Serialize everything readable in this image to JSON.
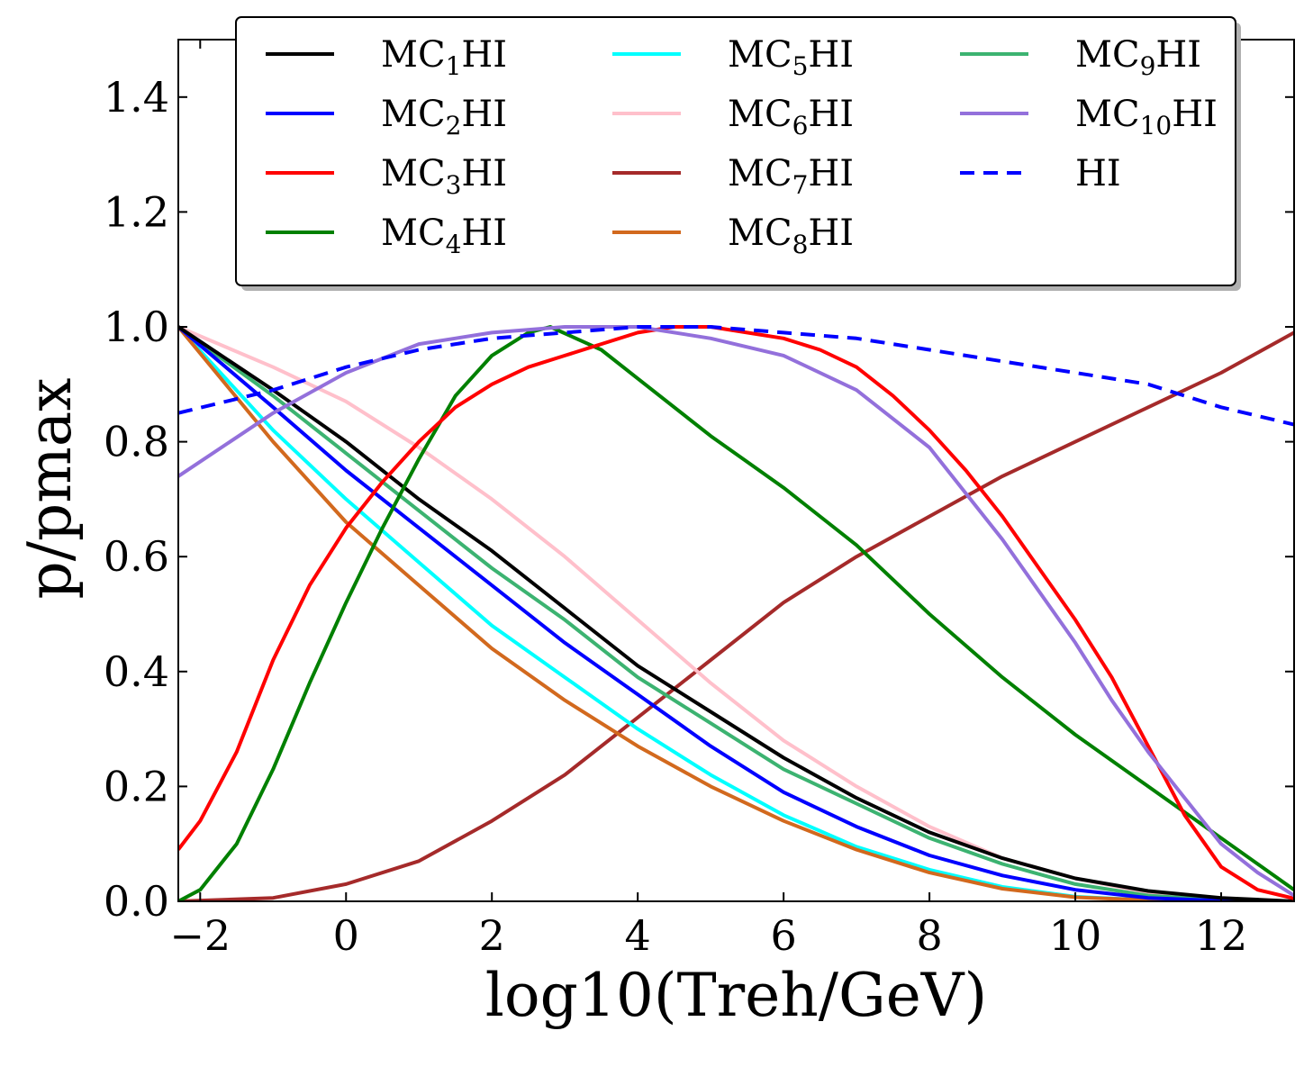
{
  "chart_data": {
    "type": "line",
    "title": "",
    "xlabel": "log10(Treh/GeV)",
    "ylabel": "p/pmax",
    "xlim": [
      -2.3,
      13
    ],
    "ylim": [
      0,
      1.5
    ],
    "xticks": [
      -2,
      0,
      2,
      4,
      6,
      8,
      10,
      12
    ],
    "xtick_labels": [
      "−2",
      "0",
      "2",
      "4",
      "6",
      "8",
      "10",
      "12"
    ],
    "yticks": [
      0,
      0.2,
      0.4,
      0.6,
      0.8,
      1.0,
      1.2,
      1.4
    ],
    "ytick_labels": [
      "0.0",
      "0.2",
      "0.4",
      "0.6",
      "0.8",
      "1.0",
      "1.2",
      "1.4"
    ],
    "grid": false,
    "legend_position": "top",
    "legend_columns": 3,
    "series": [
      {
        "name": "MC1HI",
        "label_base": "MC",
        "label_sub": "1",
        "label_suffix": "HI",
        "color": "#000000",
        "dash": "solid",
        "points": [
          [
            -2.3,
            1.0
          ],
          [
            -1,
            0.89
          ],
          [
            0,
            0.8
          ],
          [
            1,
            0.7
          ],
          [
            2,
            0.61
          ],
          [
            3,
            0.51
          ],
          [
            4,
            0.41
          ],
          [
            5,
            0.33
          ],
          [
            6,
            0.25
          ],
          [
            7,
            0.18
          ],
          [
            8,
            0.12
          ],
          [
            9,
            0.075
          ],
          [
            10,
            0.04
          ],
          [
            11,
            0.018
          ],
          [
            12,
            0.006
          ],
          [
            13,
            0.0
          ]
        ]
      },
      {
        "name": "MC2HI",
        "label_base": "MC",
        "label_sub": "2",
        "label_suffix": "HI",
        "color": "#0000ff",
        "dash": "solid",
        "points": [
          [
            -2.3,
            1.0
          ],
          [
            -1,
            0.86
          ],
          [
            0,
            0.75
          ],
          [
            1,
            0.65
          ],
          [
            2,
            0.55
          ],
          [
            3,
            0.45
          ],
          [
            4,
            0.36
          ],
          [
            5,
            0.27
          ],
          [
            6,
            0.19
          ],
          [
            7,
            0.13
          ],
          [
            8,
            0.08
          ],
          [
            9,
            0.045
          ],
          [
            10,
            0.02
          ],
          [
            11,
            0.006
          ],
          [
            12,
            0.001
          ],
          [
            13,
            0.0
          ]
        ]
      },
      {
        "name": "MC3HI",
        "label_base": "MC",
        "label_sub": "3",
        "label_suffix": "HI",
        "color": "#ff0000",
        "dash": "solid",
        "points": [
          [
            -2.3,
            0.09
          ],
          [
            -2,
            0.14
          ],
          [
            -1.5,
            0.26
          ],
          [
            -1,
            0.42
          ],
          [
            -0.5,
            0.55
          ],
          [
            0,
            0.65
          ],
          [
            0.5,
            0.73
          ],
          [
            1,
            0.8
          ],
          [
            1.5,
            0.86
          ],
          [
            2,
            0.9
          ],
          [
            2.5,
            0.93
          ],
          [
            3,
            0.95
          ],
          [
            3.5,
            0.97
          ],
          [
            4,
            0.99
          ],
          [
            4.5,
            1.0
          ],
          [
            5,
            1.0
          ],
          [
            5.5,
            0.99
          ],
          [
            6,
            0.98
          ],
          [
            6.5,
            0.96
          ],
          [
            7,
            0.93
          ],
          [
            7.5,
            0.88
          ],
          [
            8,
            0.82
          ],
          [
            8.5,
            0.75
          ],
          [
            9,
            0.67
          ],
          [
            9.5,
            0.58
          ],
          [
            10,
            0.49
          ],
          [
            10.5,
            0.39
          ],
          [
            11,
            0.27
          ],
          [
            11.5,
            0.15
          ],
          [
            12,
            0.06
          ],
          [
            12.5,
            0.02
          ],
          [
            13,
            0.005
          ]
        ]
      },
      {
        "name": "MC4HI",
        "label_base": "MC",
        "label_sub": "4",
        "label_suffix": "HI",
        "color": "#008000",
        "dash": "solid",
        "points": [
          [
            -2.3,
            0.0
          ],
          [
            -2,
            0.02
          ],
          [
            -1.5,
            0.1
          ],
          [
            -1,
            0.23
          ],
          [
            -0.5,
            0.38
          ],
          [
            0,
            0.52
          ],
          [
            0.5,
            0.65
          ],
          [
            1,
            0.77
          ],
          [
            1.5,
            0.88
          ],
          [
            2,
            0.95
          ],
          [
            2.5,
            0.99
          ],
          [
            2.8,
            1.0
          ],
          [
            3.5,
            0.96
          ],
          [
            4,
            0.91
          ],
          [
            5,
            0.81
          ],
          [
            6,
            0.72
          ],
          [
            7,
            0.62
          ],
          [
            8,
            0.5
          ],
          [
            9,
            0.39
          ],
          [
            10,
            0.29
          ],
          [
            11,
            0.2
          ],
          [
            12,
            0.11
          ],
          [
            13,
            0.02
          ]
        ]
      },
      {
        "name": "MC5HI",
        "label_base": "MC",
        "label_sub": "5",
        "label_suffix": "HI",
        "color": "#00ffff",
        "dash": "solid",
        "points": [
          [
            -2.3,
            1.0
          ],
          [
            -1,
            0.82
          ],
          [
            0,
            0.7
          ],
          [
            1,
            0.59
          ],
          [
            2,
            0.48
          ],
          [
            3,
            0.39
          ],
          [
            4,
            0.3
          ],
          [
            5,
            0.22
          ],
          [
            6,
            0.15
          ],
          [
            7,
            0.095
          ],
          [
            8,
            0.055
          ],
          [
            9,
            0.025
          ],
          [
            10,
            0.008
          ],
          [
            11,
            0.002
          ],
          [
            12,
            0.0
          ],
          [
            13,
            0.0
          ]
        ]
      },
      {
        "name": "MC6HI",
        "label_base": "MC",
        "label_sub": "6",
        "label_suffix": "HI",
        "color": "#ffc0cb",
        "dash": "solid",
        "points": [
          [
            -2.3,
            1.0
          ],
          [
            -1,
            0.93
          ],
          [
            0,
            0.87
          ],
          [
            1,
            0.79
          ],
          [
            2,
            0.7
          ],
          [
            3,
            0.6
          ],
          [
            4,
            0.49
          ],
          [
            5,
            0.38
          ],
          [
            6,
            0.28
          ],
          [
            7,
            0.2
          ],
          [
            8,
            0.13
          ],
          [
            9,
            0.075
          ],
          [
            10,
            0.04
          ],
          [
            11,
            0.015
          ],
          [
            12,
            0.003
          ],
          [
            13,
            0.0
          ]
        ]
      },
      {
        "name": "MC7HI",
        "label_base": "MC",
        "label_sub": "7",
        "label_suffix": "HI",
        "color": "#a52a2a",
        "dash": "solid",
        "points": [
          [
            -2.3,
            0.0
          ],
          [
            -1,
            0.006
          ],
          [
            0,
            0.03
          ],
          [
            1,
            0.07
          ],
          [
            2,
            0.14
          ],
          [
            3,
            0.22
          ],
          [
            4,
            0.32
          ],
          [
            5,
            0.42
          ],
          [
            6,
            0.52
          ],
          [
            7,
            0.6
          ],
          [
            8,
            0.67
          ],
          [
            9,
            0.74
          ],
          [
            10,
            0.8
          ],
          [
            11,
            0.86
          ],
          [
            12,
            0.92
          ],
          [
            13,
            0.99
          ]
        ]
      },
      {
        "name": "MC8HI",
        "label_base": "MC",
        "label_sub": "8",
        "label_suffix": "HI",
        "color": "#d2691e",
        "dash": "solid",
        "points": [
          [
            -2.3,
            1.0
          ],
          [
            -1,
            0.8
          ],
          [
            0,
            0.66
          ],
          [
            1,
            0.55
          ],
          [
            2,
            0.44
          ],
          [
            3,
            0.35
          ],
          [
            4,
            0.27
          ],
          [
            5,
            0.2
          ],
          [
            6,
            0.14
          ],
          [
            7,
            0.09
          ],
          [
            8,
            0.05
          ],
          [
            9,
            0.022
          ],
          [
            10,
            0.007
          ],
          [
            11,
            0.002
          ],
          [
            12,
            0.0
          ],
          [
            13,
            0.0
          ]
        ]
      },
      {
        "name": "MC9HI",
        "label_base": "MC",
        "label_sub": "9",
        "label_suffix": "HI",
        "color": "#3cb371",
        "dash": "solid",
        "points": [
          [
            -2.3,
            1.0
          ],
          [
            -1,
            0.88
          ],
          [
            0,
            0.78
          ],
          [
            1,
            0.68
          ],
          [
            2,
            0.58
          ],
          [
            3,
            0.49
          ],
          [
            4,
            0.39
          ],
          [
            5,
            0.31
          ],
          [
            6,
            0.23
          ],
          [
            7,
            0.17
          ],
          [
            8,
            0.11
          ],
          [
            9,
            0.065
          ],
          [
            10,
            0.03
          ],
          [
            11,
            0.01
          ],
          [
            12,
            0.002
          ],
          [
            13,
            0.0
          ]
        ]
      },
      {
        "name": "MC10HI",
        "label_base": "MC",
        "label_sub": "10",
        "label_suffix": "HI",
        "color": "#9370db",
        "dash": "solid",
        "points": [
          [
            -2.3,
            0.74
          ],
          [
            -1,
            0.85
          ],
          [
            0,
            0.92
          ],
          [
            1,
            0.97
          ],
          [
            2,
            0.99
          ],
          [
            3,
            1.0
          ],
          [
            3.5,
            1.0
          ],
          [
            4,
            1.0
          ],
          [
            5,
            0.98
          ],
          [
            6,
            0.95
          ],
          [
            7,
            0.89
          ],
          [
            8,
            0.79
          ],
          [
            9,
            0.63
          ],
          [
            10,
            0.45
          ],
          [
            10.5,
            0.35
          ],
          [
            11,
            0.26
          ],
          [
            11.5,
            0.18
          ],
          [
            12,
            0.1
          ],
          [
            12.5,
            0.05
          ],
          [
            13,
            0.01
          ]
        ]
      },
      {
        "name": "HI",
        "label_base": "HI",
        "label_sub": "",
        "label_suffix": "",
        "color": "#0000ff",
        "dash": "dashed",
        "points": [
          [
            -2.3,
            0.85
          ],
          [
            -1,
            0.89
          ],
          [
            0,
            0.93
          ],
          [
            1,
            0.96
          ],
          [
            2,
            0.98
          ],
          [
            3,
            0.99
          ],
          [
            4,
            1.0
          ],
          [
            5,
            1.0
          ],
          [
            6,
            0.99
          ],
          [
            7,
            0.98
          ],
          [
            8,
            0.96
          ],
          [
            9,
            0.94
          ],
          [
            10,
            0.92
          ],
          [
            11,
            0.9
          ],
          [
            12,
            0.86
          ],
          [
            13,
            0.83
          ]
        ]
      }
    ]
  }
}
